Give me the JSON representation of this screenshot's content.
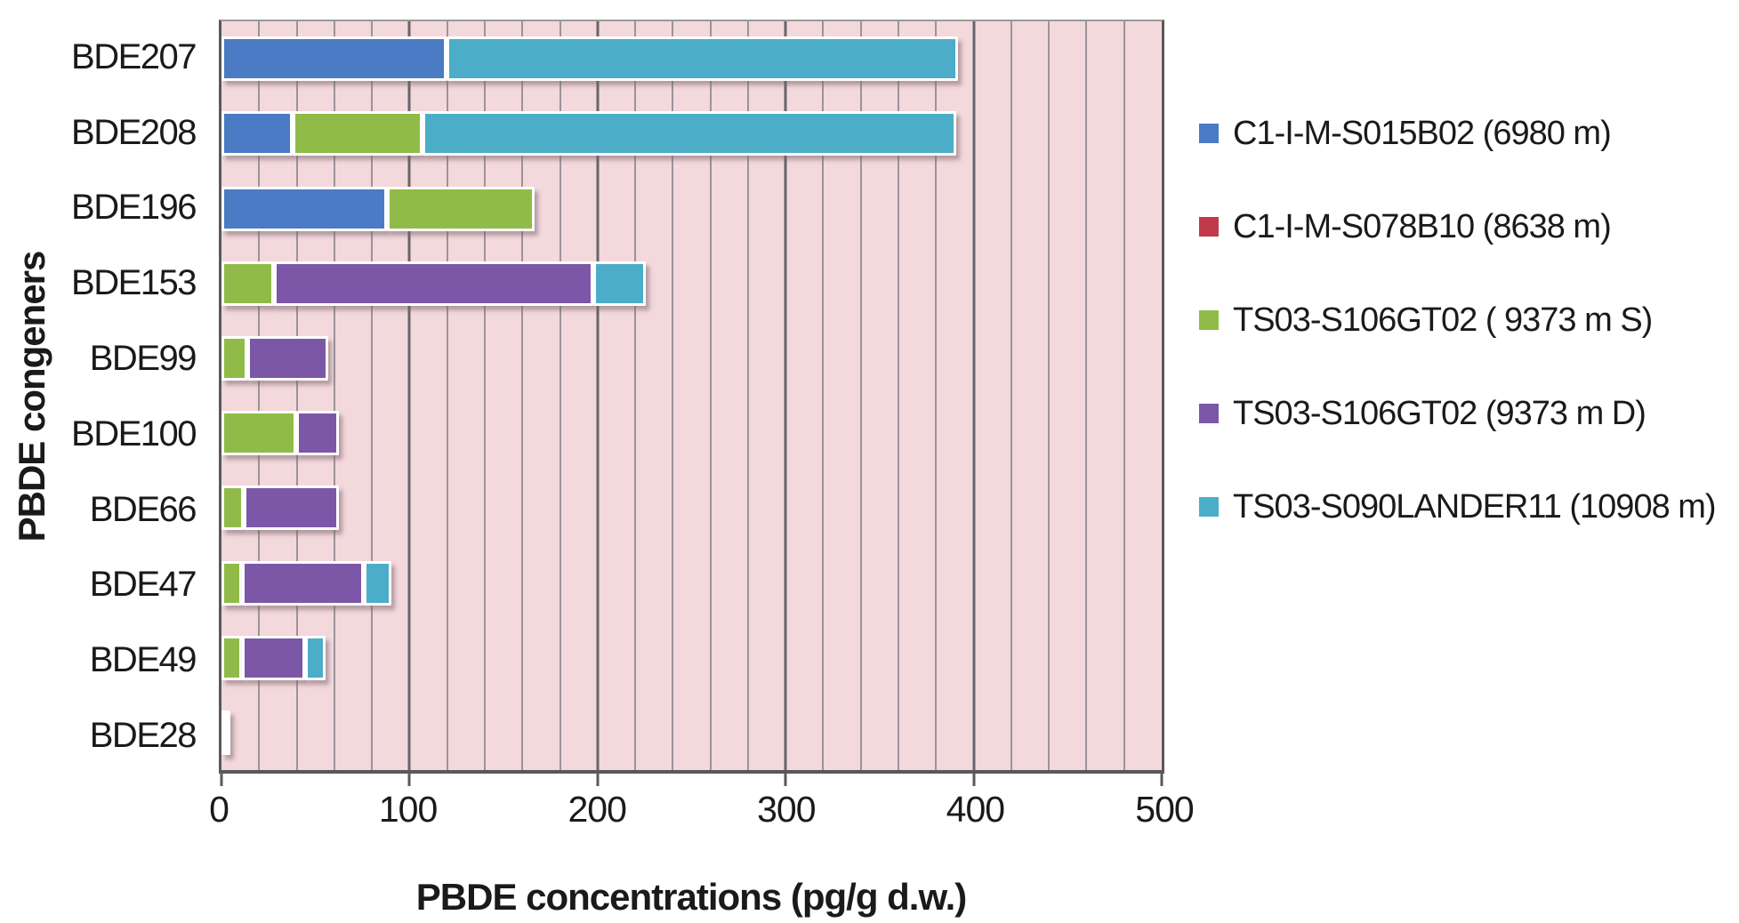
{
  "figure": {
    "background": "#ffffff",
    "plot_background": "#F3D9DC",
    "axis_color": "#595959",
    "minor_gridline_color": "#9b939a",
    "major_gridline_color": "#67646c"
  },
  "chart_data": {
    "type": "bar",
    "orientation": "horizontal",
    "stacked": true,
    "title": "",
    "xlabel": "PBDE concentrations (pg/g d.w.)",
    "ylabel": "PBDE congeners",
    "xlim": [
      0,
      500
    ],
    "x_ticks": [
      0,
      100,
      200,
      300,
      400,
      500
    ],
    "minor_grid_step": 20,
    "major_grid_step": 100,
    "grid": true,
    "legend_position": "right",
    "categories": [
      "BDE207",
      "BDE208",
      "BDE196",
      "BDE153",
      "BDE99",
      "BDE100",
      "BDE66",
      "BDE47",
      "BDE49",
      "BDE28"
    ],
    "series": [
      {
        "name": "C1-I-M-S015B02 (6980 m)",
        "color": "#4A7BC4",
        "values": [
          117,
          35,
          85,
          0,
          0,
          0,
          0,
          0,
          0,
          0
        ]
      },
      {
        "name": "C1-I-M-S078B10 (8638 m)",
        "color": "#C2394B",
        "values": [
          0,
          0,
          0,
          0,
          0,
          0,
          0,
          0,
          0,
          0
        ]
      },
      {
        "name": "TS03-S106GT02 ( 9373 m S)",
        "color": "#90BB48",
        "values": [
          0,
          66,
          76,
          25,
          11,
          37,
          9,
          8,
          8,
          0
        ]
      },
      {
        "name": "TS03-S106GT02 (9373 m D)",
        "color": "#7C57A7",
        "values": [
          0,
          0,
          0,
          167,
          40,
          20,
          48,
          62,
          31,
          0
        ]
      },
      {
        "name": "TS03-S090LANDER11 (10908 m)",
        "color": "#4CADC9",
        "values": [
          269,
          281,
          0,
          25,
          0,
          0,
          0,
          12,
          8,
          0
        ]
      }
    ],
    "trace_bars": [
      {
        "category": "BDE28",
        "approx_value": 2,
        "color": "#ffffff"
      }
    ]
  }
}
